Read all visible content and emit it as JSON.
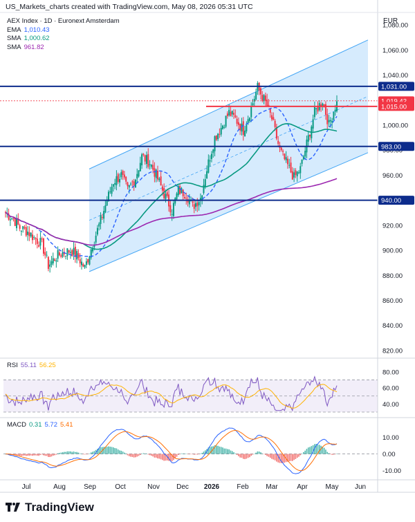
{
  "header": "US_Markets_charts created with TradingView.com, May 08, 2026 05:31 UTC",
  "currency": "EUR",
  "footer_brand": "TradingView",
  "legend_main": {
    "title": "AEX Index · 1D · Euronext Amsterdam",
    "items": [
      {
        "label": "EMA",
        "value": "1,010.43",
        "color": "#2962ff"
      },
      {
        "label": "SMA",
        "value": "1,000.62",
        "color": "#089981"
      },
      {
        "label": "SMA",
        "value": "961.82",
        "color": "#9c27b0"
      }
    ]
  },
  "legend_rsi": {
    "label": "RSI",
    "v1": "55.11",
    "v2": "56.25",
    "c1": "#7e57c2",
    "c2": "#ffb300"
  },
  "legend_macd": {
    "label": "MACD",
    "v1": "0.31",
    "v2": "5.72",
    "v3": "5.41",
    "c1": "#089981",
    "c2": "#2962ff",
    "c3": "#ff6d00"
  },
  "chart_data": {
    "type": "candlestick",
    "title": "AEX Index · 1D · Euronext Amsterdam",
    "x_labels": [
      "Jul",
      "Aug",
      "Sep",
      "Oct",
      "Nov",
      "Dec",
      "2026",
      "Feb",
      "Mar",
      "Apr",
      "May",
      "Jun"
    ],
    "y_ticks": [
      820,
      840,
      860,
      880,
      900,
      920,
      940,
      960,
      980,
      1000,
      1020,
      1040,
      1060,
      1080
    ],
    "ylim": [
      815,
      1090
    ],
    "horizontal_levels": [
      {
        "value": 1031.0,
        "label": "1,031.00",
        "color": "#0d2c8c"
      },
      {
        "value": 1019.42,
        "label": "1,019.42",
        "color": "#f23645"
      },
      {
        "value": 1015.0,
        "label": "1,015.00",
        "color": "#f23645"
      },
      {
        "value": 983.0,
        "label": "983.00",
        "color": "#0d2c8c"
      },
      {
        "value": 940.0,
        "label": "940.00",
        "color": "#0d2c8c"
      }
    ],
    "channel": {
      "lower_start": 883,
      "lower_end": 978,
      "upper_start": 965,
      "upper_end": 1068
    },
    "price_path": [
      [
        "Jul",
        930
      ],
      [
        "Jul",
        925
      ],
      [
        "Jul",
        918
      ],
      [
        "Jul",
        915
      ],
      [
        "Aug",
        910
      ],
      [
        "Aug",
        905
      ],
      [
        "Aug",
        888
      ],
      [
        "Aug",
        895
      ],
      [
        "Aug",
        898
      ],
      [
        "Sep",
        900
      ],
      [
        "Sep",
        896
      ],
      [
        "Sep",
        886
      ],
      [
        "Sep",
        905
      ],
      [
        "Sep",
        920
      ],
      [
        "Sep",
        940
      ],
      [
        "Oct",
        955
      ],
      [
        "Oct",
        960
      ],
      [
        "Oct",
        948
      ],
      [
        "Oct",
        958
      ],
      [
        "Oct",
        975
      ],
      [
        "Nov",
        970
      ],
      [
        "Nov",
        960
      ],
      [
        "Nov",
        945
      ],
      [
        "Nov",
        932
      ],
      [
        "Dec",
        948
      ],
      [
        "Dec",
        945
      ],
      [
        "Dec",
        935
      ],
      [
        "Dec",
        942
      ],
      [
        "2026",
        965
      ],
      [
        "2026",
        990
      ],
      [
        "2026",
        998
      ],
      [
        "Feb",
        1010
      ],
      [
        "Feb",
        1005
      ],
      [
        "Feb",
        996
      ],
      [
        "Feb",
        1010
      ],
      [
        "Mar",
        1030
      ],
      [
        "Mar",
        1018
      ],
      [
        "Mar",
        1005
      ],
      [
        "Mar",
        980
      ],
      [
        "Mar",
        970
      ],
      [
        "Apr",
        958
      ],
      [
        "Apr",
        965
      ],
      [
        "Apr",
        990
      ],
      [
        "Apr",
        1010
      ],
      [
        "May",
        1020
      ],
      [
        "May",
        1000
      ],
      [
        "May",
        1019
      ]
    ],
    "series": [
      {
        "name": "EMA",
        "value_last": 1010.43
      },
      {
        "name": "SMA",
        "value_last": 1000.62
      },
      {
        "name": "SMA",
        "value_last": 961.82
      }
    ],
    "rsi": {
      "ticks": [
        40,
        60,
        80
      ],
      "levels": [
        30,
        70
      ],
      "last": 55.11,
      "signal_last": 56.25
    },
    "macd": {
      "ticks": [
        -10,
        0,
        10
      ],
      "hist_last": 0.31,
      "macd_last": 5.72,
      "signal_last": 5.41
    }
  }
}
